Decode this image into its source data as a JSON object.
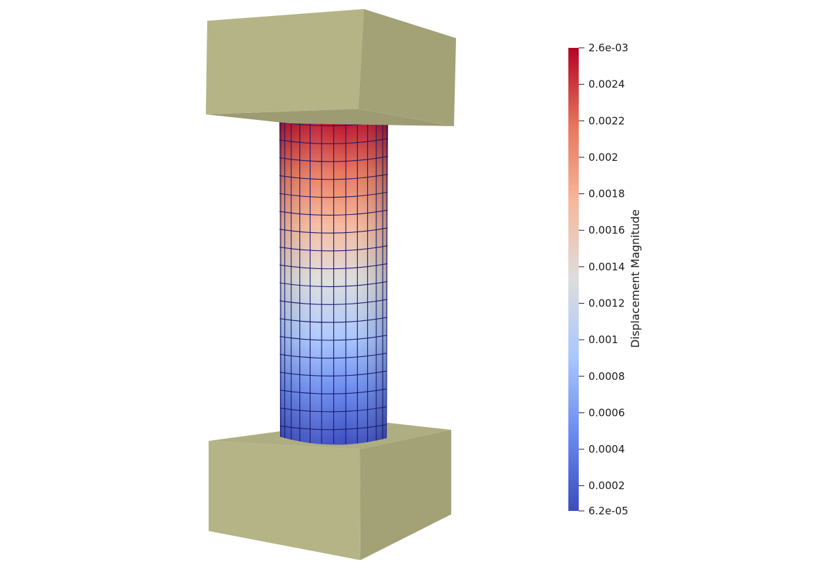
{
  "scene": {
    "platen_color": "#b4b487",
    "platen_side_color": "#a3a277",
    "platen_bottom_color": "#9c9b71",
    "mesh_line_color": "#1a1a6e"
  },
  "scalar_bar": {
    "title": "Displacement Magnitude",
    "range": [
      6.2e-05,
      0.0026
    ],
    "colormap": [
      "#3b4cc0",
      "#6a8bef",
      "#aac7fd",
      "#dddddd",
      "#f7b89c",
      "#e7755b",
      "#b40426"
    ],
    "ticks": [
      {
        "value": 0.0026,
        "label": "2.6e-03"
      },
      {
        "value": 0.0024,
        "label": "0.0024"
      },
      {
        "value": 0.0022,
        "label": "0.0022"
      },
      {
        "value": 0.002,
        "label": "0.002"
      },
      {
        "value": 0.0018,
        "label": "0.0018"
      },
      {
        "value": 0.0016,
        "label": "0.0016"
      },
      {
        "value": 0.0014,
        "label": "0.0014"
      },
      {
        "value": 0.0012,
        "label": "0.0012"
      },
      {
        "value": 0.001,
        "label": "0.001"
      },
      {
        "value": 0.0008,
        "label": "0.0008"
      },
      {
        "value": 0.0006,
        "label": "0.0006"
      },
      {
        "value": 0.0004,
        "label": "0.0004"
      },
      {
        "value": 0.0002,
        "label": "0.0002"
      },
      {
        "value": 6.2e-05,
        "label": "6.2e-05"
      }
    ]
  }
}
